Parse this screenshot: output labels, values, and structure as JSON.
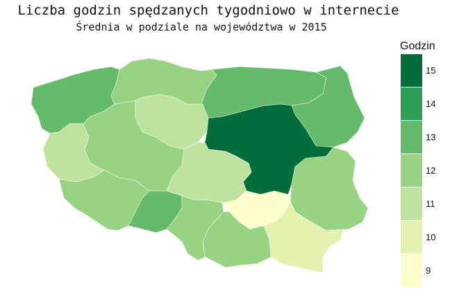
{
  "title": "Liczba godzin spędzanych tygodniowo w internecie",
  "subtitle": "Średnia w podziale na województwa w 2015",
  "legend": {
    "title": "Godzin",
    "items": [
      {
        "label": "15",
        "value": 15,
        "color": "#006d3b"
      },
      {
        "label": "14",
        "value": 14,
        "color": "#2f9e56"
      },
      {
        "label": "13",
        "value": 13,
        "color": "#66bb6b"
      },
      {
        "label": "12",
        "value": 12,
        "color": "#98d384"
      },
      {
        "label": "11",
        "value": 11,
        "color": "#bfe39e"
      },
      {
        "label": "10",
        "value": 10,
        "color": "#e4f2b0"
      },
      {
        "label": "9",
        "value": 9,
        "color": "#fdfecc"
      }
    ]
  },
  "regions": [
    {
      "name": "zachodniopomorskie",
      "hours": 13
    },
    {
      "name": "pomorskie",
      "hours": 12
    },
    {
      "name": "warmińsko-mazurskie",
      "hours": 13
    },
    {
      "name": "podlaskie",
      "hours": 13
    },
    {
      "name": "lubuskie",
      "hours": 11
    },
    {
      "name": "wielkopolskie",
      "hours": 12
    },
    {
      "name": "kujawsko-pomorskie",
      "hours": 11
    },
    {
      "name": "mazowieckie",
      "hours": 15
    },
    {
      "name": "łódzkie",
      "hours": 11
    },
    {
      "name": "lubelskie",
      "hours": 12
    },
    {
      "name": "dolnośląskie",
      "hours": 12
    },
    {
      "name": "opolskie",
      "hours": 13
    },
    {
      "name": "śląskie",
      "hours": 12
    },
    {
      "name": "świętokrzyskie",
      "hours": 9
    },
    {
      "name": "małopolskie",
      "hours": 12
    },
    {
      "name": "podkarpackie",
      "hours": 10
    }
  ]
}
